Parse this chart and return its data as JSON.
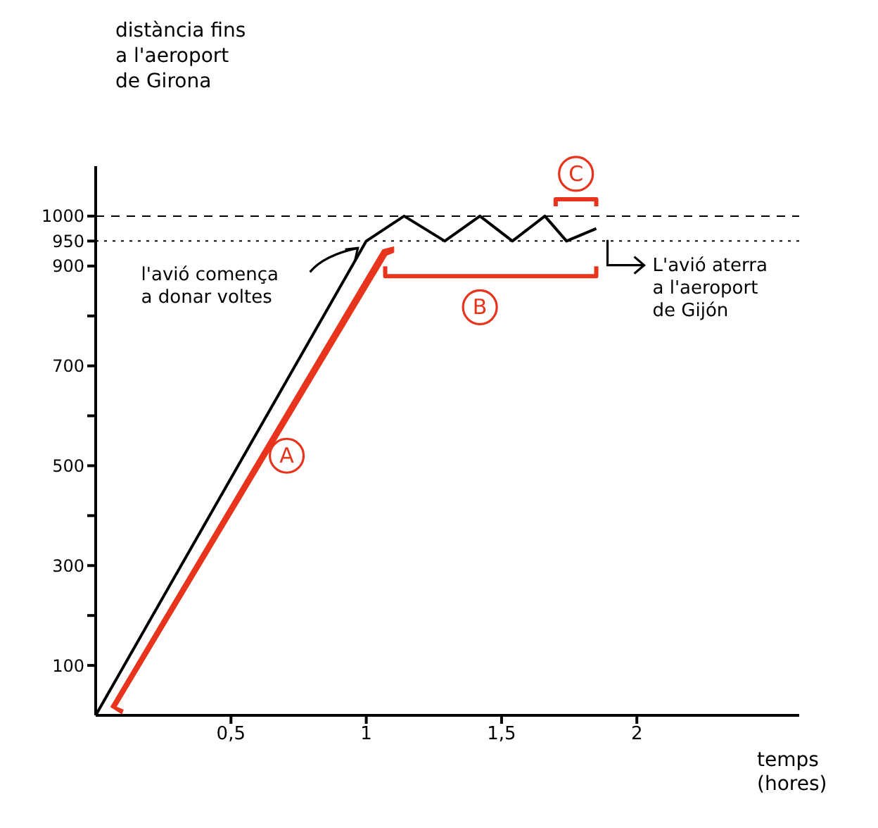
{
  "chart_data": {
    "type": "line",
    "xlabel": "temps (hores)",
    "ylabel": "distància fins a l'aeroport de Girona",
    "x": [
      0,
      1,
      1.14,
      1.29,
      1.42,
      1.54,
      1.66,
      1.74,
      1.85
    ],
    "series": [
      {
        "color": "#000000",
        "values": [
          0,
          950,
          1000,
          950,
          1000,
          950,
          1000,
          950,
          975
        ]
      }
    ],
    "xlim": [
      0,
      2.6
    ],
    "xticks": [
      {
        "value": 0.5,
        "label": "0,5"
      },
      1,
      {
        "value": 1.5,
        "label": "1,5"
      },
      2
    ],
    "ylim": [
      0,
      1100
    ],
    "yticks": [
      100,
      {
        "value": 200,
        "label": null
      },
      300,
      {
        "value": 400,
        "label": null
      },
      500,
      {
        "value": 600,
        "label": null
      },
      700,
      {
        "value": 800,
        "label": null
      },
      900,
      950,
      1000
    ],
    "ref_lines": [
      {
        "axis": "y",
        "value": 1000,
        "line_style": "dashed"
      },
      {
        "axis": "y",
        "value": 950,
        "line_style": "dotted"
      }
    ],
    "annotations": [
      "l'avió comença a donar voltes",
      "L'avió aterra a l'aeroport de Gijón",
      {
        "text": "A",
        "x": 0.55,
        "y": 520
      },
      {
        "text": "B",
        "x": 1.42,
        "y": 950
      },
      {
        "text": "C",
        "x": 1.8,
        "y": 1000
      }
    ],
    "grid": false,
    "marker": "none",
    "line_style": "solid"
  }
}
